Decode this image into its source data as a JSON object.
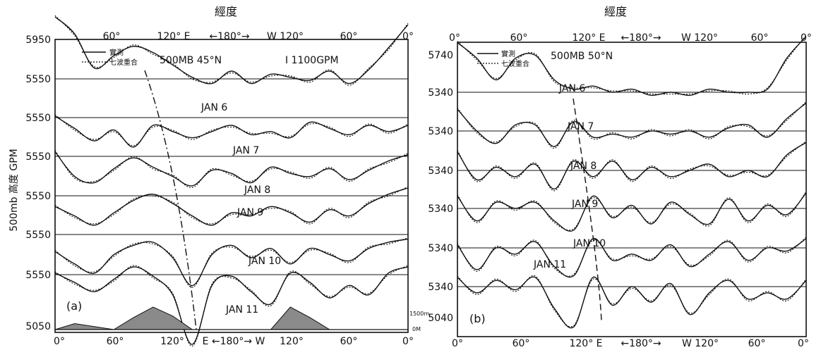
{
  "ylabel": "500mb 高度 GPM",
  "chart_data": [
    {
      "type": "line",
      "panel_label": "(a)",
      "top_axis_title": "經度",
      "top_ticks": [
        "60°",
        "120° E",
        "←180°→",
        "W 120°",
        "60°",
        "0°"
      ],
      "bottom_ticks": [
        "0°",
        "60°",
        "120°",
        "E ←180°→ W",
        "120°",
        "60°",
        "0°"
      ],
      "header": "500MB 45°N",
      "contour_note": "I 1100GPM",
      "legend": [
        "實測",
        "七波重合"
      ],
      "ytick_labels": [
        "5950",
        "5550",
        "5550",
        "5550",
        "5550",
        "5550",
        "5550",
        "5050"
      ],
      "terrain_scale": [
        "1500m",
        "0M"
      ],
      "series": [
        {
          "name": "JAN 6",
          "x": [
            0,
            20,
            40,
            60,
            80,
            100,
            120,
            140,
            160,
            180,
            200,
            220,
            240,
            260,
            280,
            300,
            320,
            340,
            360
          ],
          "values": [
            5950,
            5840,
            5620,
            5700,
            5760,
            5720,
            5640,
            5560,
            5520,
            5600,
            5520,
            5580,
            5560,
            5540,
            5600,
            5520,
            5610,
            5750,
            5900
          ]
        },
        {
          "name": "JAN 7",
          "x": [
            0,
            20,
            40,
            60,
            80,
            100,
            120,
            140,
            160,
            180,
            200,
            220,
            240,
            260,
            280,
            300,
            320,
            340,
            360
          ],
          "values": [
            5560,
            5480,
            5400,
            5470,
            5360,
            5500,
            5460,
            5420,
            5460,
            5500,
            5440,
            5460,
            5420,
            5520,
            5480,
            5440,
            5500,
            5460,
            5500
          ]
        },
        {
          "name": "JAN 8",
          "x": [
            0,
            20,
            40,
            60,
            80,
            100,
            120,
            140,
            160,
            180,
            200,
            220,
            240,
            260,
            280,
            300,
            320,
            340,
            360
          ],
          "values": [
            5580,
            5420,
            5380,
            5470,
            5540,
            5480,
            5420,
            5360,
            5460,
            5440,
            5380,
            5480,
            5440,
            5420,
            5470,
            5400,
            5460,
            5520,
            5560
          ]
        },
        {
          "name": "JAN 9",
          "x": [
            0,
            20,
            40,
            60,
            80,
            100,
            120,
            140,
            160,
            180,
            200,
            220,
            240,
            260,
            280,
            300,
            320,
            340,
            360
          ],
          "values": [
            5480,
            5420,
            5360,
            5440,
            5520,
            5560,
            5500,
            5420,
            5360,
            5440,
            5420,
            5480,
            5440,
            5380,
            5460,
            5420,
            5500,
            5560,
            5600
          ]
        },
        {
          "name": "JAN 10",
          "x": [
            0,
            20,
            40,
            60,
            80,
            100,
            120,
            140,
            160,
            180,
            200,
            220,
            240,
            260,
            280,
            300,
            320,
            340,
            360
          ],
          "values": [
            5440,
            5360,
            5300,
            5420,
            5480,
            5500,
            5400,
            5220,
            5420,
            5480,
            5400,
            5460,
            5360,
            5460,
            5420,
            5380,
            5460,
            5500,
            5520
          ]
        },
        {
          "name": "JAN 11",
          "x": [
            0,
            20,
            40,
            60,
            80,
            100,
            120,
            140,
            160,
            180,
            200,
            220,
            240,
            260,
            280,
            300,
            320,
            340,
            360
          ],
          "values": [
            5560,
            5500,
            5440,
            5520,
            5600,
            5540,
            5420,
            5100,
            5480,
            5540,
            5440,
            5360,
            5560,
            5500,
            5400,
            5480,
            5420,
            5560,
            5600
          ]
        }
      ],
      "terrain": [
        {
          "x": [
            0,
            20,
            40,
            60
          ],
          "height_m": [
            0,
            400,
            200,
            0
          ]
        },
        {
          "x": [
            60,
            80,
            100,
            120,
            140
          ],
          "height_m": [
            0,
            800,
            1500,
            900,
            0
          ]
        },
        {
          "x": [
            220,
            240,
            260,
            280
          ],
          "height_m": [
            0,
            1500,
            800,
            0
          ]
        }
      ]
    },
    {
      "type": "line",
      "panel_label": "(b)",
      "top_axis_title": "經度",
      "top_ticks": [
        "0°",
        "60°",
        "120° E",
        "←180°→",
        "W 120°",
        "60°",
        "0°"
      ],
      "bottom_ticks": [
        "0°",
        "60°",
        "120° E",
        "←180°→",
        "W 120°",
        "60°",
        "0°"
      ],
      "header": "500MB 50°N",
      "legend": [
        "實測",
        "七波重合"
      ],
      "ytick_labels": [
        "5740",
        "5340",
        "5340",
        "5340",
        "5340",
        "5340",
        "5340",
        "5040"
      ],
      "series": [
        {
          "name": "JAN 6",
          "x": [
            0,
            20,
            40,
            60,
            80,
            100,
            120,
            140,
            160,
            180,
            200,
            220,
            240,
            260,
            280,
            300,
            320,
            340,
            360
          ],
          "values": [
            5660,
            5560,
            5420,
            5560,
            5580,
            5420,
            5360,
            5380,
            5340,
            5360,
            5320,
            5340,
            5320,
            5360,
            5340,
            5340,
            5360,
            5560,
            5700
          ]
        },
        {
          "name": "JAN 7",
          "x": [
            0,
            20,
            40,
            60,
            80,
            100,
            120,
            140,
            160,
            180,
            200,
            220,
            240,
            260,
            280,
            300,
            320,
            340,
            360
          ],
          "values": [
            5480,
            5340,
            5260,
            5380,
            5380,
            5240,
            5400,
            5300,
            5320,
            5300,
            5340,
            5320,
            5340,
            5300,
            5360,
            5380,
            5300,
            5420,
            5520
          ]
        },
        {
          "name": "JAN 8",
          "x": [
            0,
            20,
            40,
            60,
            80,
            100,
            120,
            140,
            160,
            180,
            200,
            220,
            240,
            260,
            280,
            300,
            320,
            340,
            360
          ],
          "values": [
            5460,
            5280,
            5360,
            5300,
            5380,
            5220,
            5400,
            5300,
            5400,
            5280,
            5360,
            5300,
            5340,
            5380,
            5300,
            5340,
            5300,
            5440,
            5520
          ]
        },
        {
          "name": "JAN 9",
          "x": [
            0,
            20,
            40,
            60,
            80,
            100,
            120,
            140,
            160,
            180,
            200,
            220,
            240,
            260,
            280,
            300,
            320,
            340,
            360
          ],
          "values": [
            5420,
            5260,
            5380,
            5340,
            5380,
            5260,
            5200,
            5420,
            5280,
            5360,
            5240,
            5380,
            5300,
            5240,
            5400,
            5260,
            5360,
            5300,
            5440
          ]
        },
        {
          "name": "JAN 10",
          "x": [
            0,
            20,
            40,
            60,
            80,
            100,
            120,
            140,
            160,
            180,
            200,
            220,
            240,
            260,
            280,
            300,
            320,
            340,
            360
          ],
          "values": [
            5360,
            5200,
            5340,
            5300,
            5380,
            5220,
            5160,
            5400,
            5260,
            5300,
            5260,
            5360,
            5220,
            5300,
            5380,
            5260,
            5340,
            5320,
            5400
          ]
        },
        {
          "name": "JAN 11",
          "x": [
            0,
            20,
            40,
            60,
            80,
            100,
            120,
            140,
            160,
            180,
            200,
            220,
            240,
            260,
            280,
            300,
            320,
            340,
            360
          ],
          "values": [
            5400,
            5300,
            5380,
            5320,
            5400,
            5200,
            5080,
            5400,
            5220,
            5340,
            5240,
            5360,
            5160,
            5300,
            5380,
            5260,
            5300,
            5260,
            5380
          ]
        }
      ]
    }
  ]
}
